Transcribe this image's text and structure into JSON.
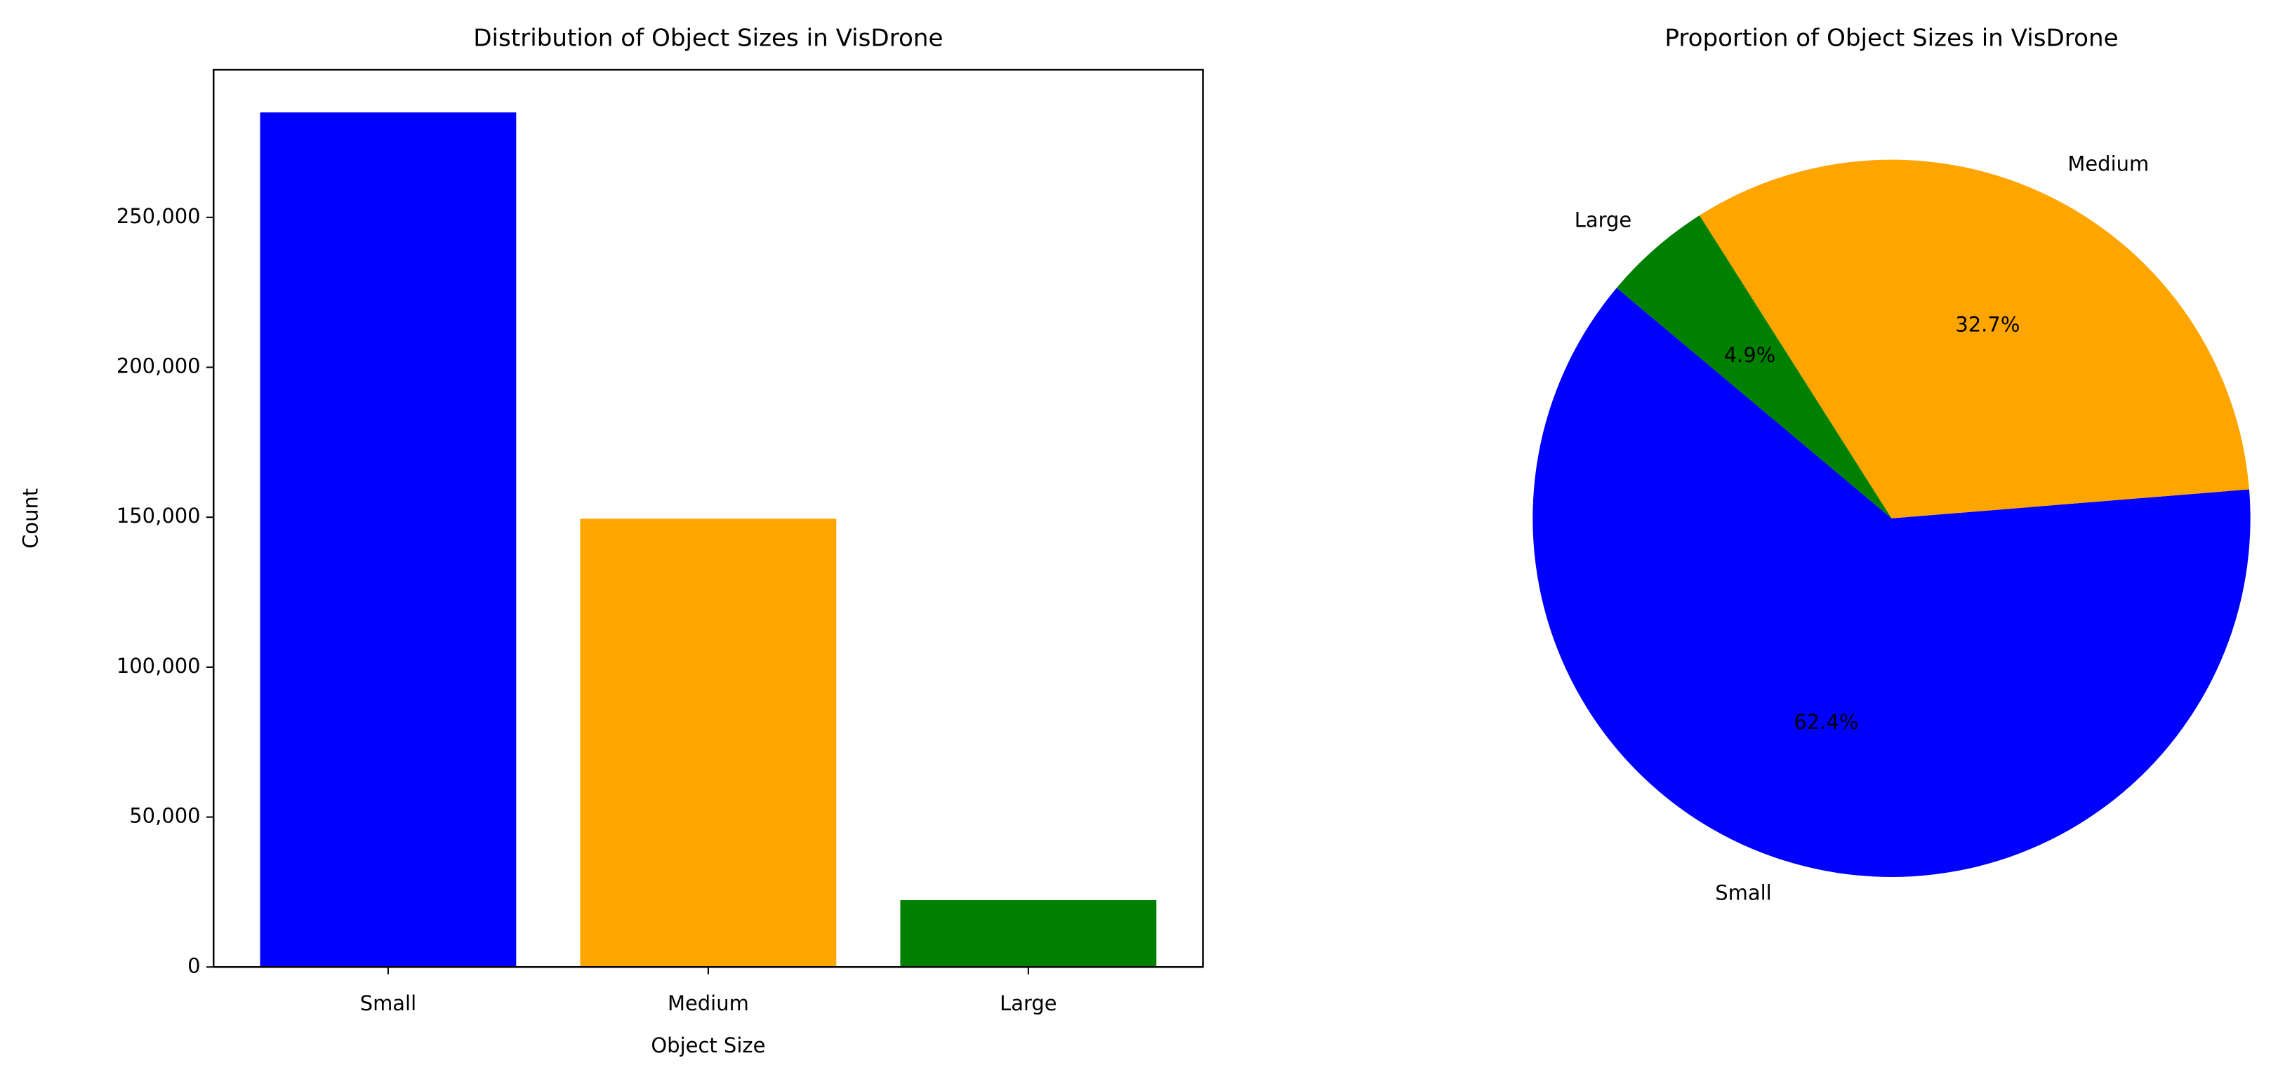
{
  "chart_data": [
    {
      "type": "bar",
      "title": "Distribution of Object Sizes in VisDrone",
      "x_label": "Object Size",
      "y_label": "Count",
      "categories": [
        "Small",
        "Medium",
        "Large"
      ],
      "values": [
        285000,
        149500,
        22300
      ],
      "colors": [
        "#0000ff",
        "#ffa500",
        "#008000"
      ],
      "ylim": [
        0,
        299250
      ],
      "yticks": [
        0,
        {
          "value": 50000,
          "label": "50,000"
        },
        {
          "value": 100000,
          "label": "100,000"
        },
        {
          "value": 150000,
          "label": "150,000"
        },
        {
          "value": 200000,
          "label": "200,000"
        },
        {
          "value": 250000,
          "label": "250,000"
        }
      ],
      "grid": false
    },
    {
      "type": "pie",
      "title": "Proportion of Object Sizes in VisDrone",
      "categories": [
        "Small",
        "Medium",
        "Large"
      ],
      "values": [
        62.4,
        32.7,
        4.9
      ],
      "value_labels": [
        "62.4%",
        "32.7%",
        "4.9%"
      ],
      "colors": [
        "#0000ff",
        "#ffa500",
        "#008000"
      ],
      "startangle": 140
    }
  ]
}
